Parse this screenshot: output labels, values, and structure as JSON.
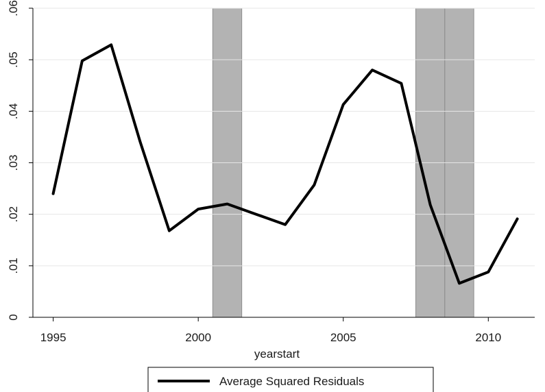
{
  "chart_data": {
    "type": "line",
    "title": "",
    "xlabel": "yearstart",
    "ylabel": "",
    "xlim": [
      1994.3,
      2011.6
    ],
    "ylim": [
      0,
      0.06
    ],
    "grid": true,
    "x_ticks": [
      1995,
      2000,
      2005,
      2010
    ],
    "x_tick_labels": [
      "1995",
      "2000",
      "2005",
      "2010"
    ],
    "y_ticks": [
      0,
      0.01,
      0.02,
      0.03,
      0.04,
      0.05,
      0.06
    ],
    "y_tick_labels": [
      "0",
      ".01",
      ".02",
      ".03",
      ".04",
      ".05",
      ".06"
    ],
    "shaded_periods": [
      {
        "start": 2000.5,
        "end": 2001.5
      },
      {
        "start": 2007.5,
        "end": 2008.5
      },
      {
        "start": 2008.5,
        "end": 2009.5
      }
    ],
    "legend_position": "bottom",
    "series": [
      {
        "name": "Average Squared Residuals",
        "color": "#000000",
        "x": [
          1995,
          1996,
          1997,
          1998,
          1999,
          2000,
          2001,
          2002,
          2003,
          2004,
          2005,
          2006,
          2007,
          2008,
          2009,
          2010,
          2011
        ],
        "values": [
          0.024,
          0.0498,
          0.0529,
          0.034,
          0.0168,
          0.021,
          0.022,
          0.02,
          0.018,
          0.0257,
          0.0413,
          0.048,
          0.0454,
          0.0218,
          0.0066,
          0.0088,
          0.0191
        ]
      }
    ]
  }
}
